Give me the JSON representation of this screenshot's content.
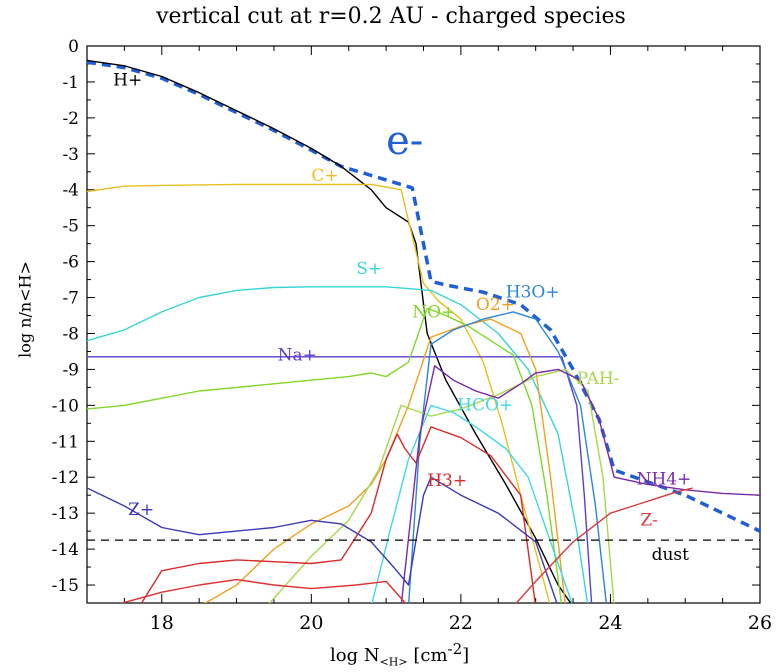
{
  "chart_data": {
    "type": "line",
    "title": "vertical cut at r=0.2 AU - charged species",
    "xlabel_main": "log N",
    "xlabel_sub": "<H>",
    "xlabel_unit": "[cm",
    "xlabel_exp": "-2",
    "xlabel_close": "]",
    "ylabel": "log n/n<H>",
    "xlim": [
      17,
      26
    ],
    "ylim": [
      -15.5,
      0
    ],
    "xticks": [
      "18",
      "20",
      "22",
      "24",
      "26"
    ],
    "yticks": [
      "0",
      "-1",
      "-2",
      "-3",
      "-4",
      "-5",
      "-6",
      "-7",
      "-8",
      "-9",
      "-10",
      "-11",
      "-12",
      "-13",
      "-14",
      "-15"
    ],
    "dust_level": -13.75,
    "dust_label": "dust",
    "series": [
      {
        "name": "e-",
        "color": "#1f5fd6",
        "dashed": true,
        "width": 3.5,
        "label_x": 21.0,
        "label_y": -3.0,
        "label_size": 40,
        "x": [
          17.0,
          17.5,
          18.0,
          18.5,
          19.0,
          19.5,
          20.0,
          20.4,
          20.8,
          21.35,
          21.6,
          21.8,
          22.3,
          22.8,
          23.2,
          23.5,
          23.85,
          24.05,
          25.0,
          26.0
        ],
        "y": [
          -0.45,
          -0.6,
          -0.9,
          -1.35,
          -1.85,
          -2.35,
          -2.9,
          -3.35,
          -3.6,
          -3.95,
          -6.55,
          -6.65,
          -6.85,
          -7.2,
          -7.9,
          -9.0,
          -10.4,
          -11.8,
          -12.5,
          -13.5
        ]
      },
      {
        "name": "H+",
        "color": "#000000",
        "label_x": 17.35,
        "label_y": -1.1,
        "label_size": 17,
        "x": [
          17.0,
          17.5,
          18.0,
          18.5,
          19.0,
          19.5,
          20.0,
          20.4,
          20.8,
          21.0,
          21.3,
          21.4,
          21.55,
          21.8,
          22.2,
          22.6,
          23.0,
          23.3,
          23.5
        ],
        "y": [
          -0.4,
          -0.55,
          -0.85,
          -1.3,
          -1.8,
          -2.3,
          -2.85,
          -3.35,
          -4.0,
          -4.5,
          -4.9,
          -5.5,
          -8.0,
          -9.3,
          -10.8,
          -12.2,
          -13.7,
          -15.0,
          -15.6
        ]
      },
      {
        "name": "C+",
        "color": "#e8c020",
        "label_x": 20.0,
        "label_y": -3.75,
        "label_size": 17,
        "x": [
          17.0,
          17.5,
          18.0,
          19.0,
          20.0,
          20.8,
          21.2,
          21.5,
          21.7,
          22.0,
          22.3,
          22.55,
          22.8,
          23.2
        ],
        "y": [
          -4.05,
          -3.9,
          -3.88,
          -3.85,
          -3.85,
          -3.85,
          -4.0,
          -6.6,
          -7.1,
          -7.6,
          -8.8,
          -10.5,
          -12.5,
          -15.6
        ]
      },
      {
        "name": "S+",
        "color": "#36d6d6",
        "label_x": 20.6,
        "label_y": -6.35,
        "label_size": 17,
        "x": [
          17.0,
          17.5,
          18.0,
          18.5,
          19.0,
          19.5,
          20.0,
          21.0,
          21.6,
          22.0,
          22.5,
          22.9,
          23.3,
          23.55,
          23.7
        ],
        "y": [
          -8.2,
          -7.9,
          -7.4,
          -7.0,
          -6.8,
          -6.72,
          -6.7,
          -6.7,
          -6.8,
          -7.2,
          -8.0,
          -9.0,
          -10.8,
          -13.5,
          -15.6
        ]
      },
      {
        "name": "Na+",
        "color": "#5a3fd0",
        "label_x": 19.55,
        "label_y": -8.75,
        "label_size": 17,
        "x": [
          17.0,
          19.0,
          21.0,
          23.0,
          23.35,
          23.55,
          23.65,
          23.75
        ],
        "y": [
          -8.65,
          -8.65,
          -8.65,
          -8.65,
          -8.65,
          -10.0,
          -12.5,
          -15.6
        ]
      },
      {
        "name": "NO+",
        "color": "#7fd82a",
        "label_x": 21.35,
        "label_y": -7.55,
        "label_size": 17,
        "x": [
          17.0,
          17.5,
          18.0,
          18.5,
          19.0,
          19.5,
          20.0,
          20.5,
          20.8,
          21.0,
          21.3,
          21.55,
          21.8,
          22.1,
          22.4,
          22.7,
          22.95,
          23.15,
          23.35
        ],
        "y": [
          -10.1,
          -10.0,
          -9.8,
          -9.6,
          -9.5,
          -9.4,
          -9.3,
          -9.2,
          -9.1,
          -9.2,
          -8.8,
          -7.3,
          -7.5,
          -7.8,
          -8.2,
          -8.6,
          -10.0,
          -12.5,
          -15.6
        ]
      },
      {
        "name": "O2+",
        "color": "#f0a020",
        "label_x": 22.2,
        "label_y": -7.35,
        "label_size": 17,
        "x": [
          18.5,
          19.0,
          19.5,
          20.0,
          20.5,
          20.8,
          21.0,
          21.3,
          21.6,
          22.0,
          22.4,
          22.8,
          23.0,
          23.2,
          23.4
        ],
        "y": [
          -15.6,
          -15.0,
          -14.0,
          -13.3,
          -12.8,
          -12.2,
          -11.5,
          -10.0,
          -8.1,
          -7.8,
          -7.6,
          -8.0,
          -9.0,
          -12.0,
          -15.6
        ]
      },
      {
        "name": "H3O+",
        "color": "#2c86d8",
        "label_x": 22.6,
        "label_y": -7.0,
        "label_size": 17,
        "x": [
          21.3,
          21.45,
          21.6,
          21.9,
          22.3,
          22.7,
          23.0,
          23.3,
          23.6,
          23.8,
          23.95
        ],
        "y": [
          -15.6,
          -11.0,
          -8.3,
          -7.9,
          -7.6,
          -7.4,
          -7.6,
          -8.5,
          -10.0,
          -12.8,
          -15.6
        ]
      },
      {
        "name": "PAH-",
        "color": "#a8d84a",
        "label_x": 23.55,
        "label_y": -9.4,
        "label_size": 17,
        "x": [
          19.4,
          20.0,
          20.5,
          20.9,
          21.2,
          21.6,
          22.0,
          22.5,
          23.0,
          23.4,
          23.7,
          23.9,
          24.05
        ],
        "y": [
          -15.6,
          -14.2,
          -13.2,
          -11.8,
          -10.0,
          -10.3,
          -10.1,
          -9.7,
          -9.2,
          -9.0,
          -9.6,
          -12.0,
          -15.6
        ]
      },
      {
        "name": "HCO+",
        "color": "#40d8e8",
        "label_x": 21.95,
        "label_y": -10.15,
        "label_size": 17,
        "x": [
          20.8,
          21.05,
          21.3,
          21.6,
          21.9,
          22.2,
          22.6,
          22.9,
          23.2,
          23.5
        ],
        "y": [
          -15.6,
          -13.5,
          -11.5,
          -10.0,
          -10.2,
          -10.6,
          -11.2,
          -12.0,
          -13.8,
          -15.6
        ]
      },
      {
        "name": "H3+",
        "color": "#d82a2a",
        "label_x": 21.55,
        "label_y": -12.25,
        "label_size": 17,
        "x": [
          17.7,
          18.0,
          18.5,
          19.0,
          19.5,
          20.0,
          20.4,
          20.8,
          21.0,
          21.15,
          21.25,
          21.4,
          21.6,
          22.0,
          22.4,
          22.8,
          23.0
        ],
        "y": [
          -15.6,
          -14.6,
          -14.4,
          -14.3,
          -14.35,
          -14.4,
          -14.3,
          -13.0,
          -11.5,
          -10.8,
          -11.2,
          -11.6,
          -10.6,
          -10.9,
          -11.4,
          -12.5,
          -15.6
        ]
      },
      {
        "name": "NH4+",
        "color": "#7a2aa8",
        "label_x": 24.35,
        "label_y": -12.2,
        "label_size": 17,
        "x": [
          21.2,
          21.45,
          21.65,
          21.9,
          22.2,
          22.5,
          22.8,
          23.0,
          23.3,
          23.6,
          23.85,
          24.05,
          24.5,
          25.0,
          25.5,
          26.0
        ],
        "y": [
          -15.6,
          -10.8,
          -8.9,
          -9.3,
          -9.6,
          -9.8,
          -9.4,
          -9.1,
          -9.0,
          -9.3,
          -10.4,
          -12.0,
          -12.2,
          -12.35,
          -12.45,
          -12.5
        ]
      },
      {
        "name": "Z+",
        "color": "#3a3ab8",
        "label_x": 17.55,
        "label_y": -13.05,
        "label_size": 17,
        "x": [
          17.0,
          17.5,
          18.0,
          18.5,
          19.0,
          19.5,
          20.0,
          20.4,
          20.8,
          21.1,
          21.3,
          21.5,
          21.6,
          22.0,
          22.5,
          23.0,
          23.3
        ],
        "y": [
          -12.3,
          -12.8,
          -13.4,
          -13.6,
          -13.5,
          -13.4,
          -13.2,
          -13.3,
          -13.8,
          -14.5,
          -15.0,
          -12.5,
          -12.0,
          -12.5,
          -13.0,
          -13.8,
          -15.6
        ]
      },
      {
        "name": "Z-",
        "color": "#d83a3a",
        "label_x": 24.4,
        "label_y": -13.35,
        "label_size": 17,
        "x": [
          22.7,
          23.0,
          23.5,
          24.0,
          24.3,
          24.6,
          24.9,
          25.1
        ],
        "y": [
          -15.6,
          -14.9,
          -13.8,
          -13.0,
          -12.8,
          -12.6,
          -12.4,
          -12.3
        ]
      },
      {
        "color": "#e03030",
        "x": [
          17.3,
          18.0,
          18.5,
          19.0,
          19.5,
          20.0,
          20.6,
          21.0,
          21.3
        ],
        "y": [
          -15.6,
          -15.2,
          -15.0,
          -14.85,
          -15.0,
          -15.1,
          -15.0,
          -14.9,
          -15.6
        ]
      }
    ]
  }
}
